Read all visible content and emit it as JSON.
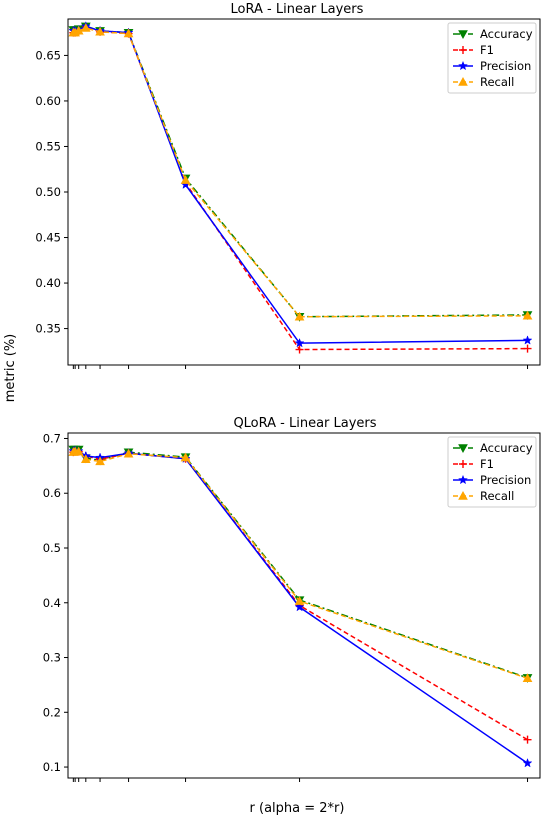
{
  "figure": {
    "ylabel": "metric (%)",
    "xlabel": "r (alpha = 2*r)"
  },
  "chart_data": [
    {
      "type": "line",
      "title": "LoRA - Linear Layers",
      "x_ticks": [
        1,
        2,
        4,
        8,
        16,
        32,
        64,
        128,
        256
      ],
      "xscale": "linear (r = 1…256, tick labels hidden)",
      "ylim": [
        0.31,
        0.69
      ],
      "yticks": [
        0.35,
        0.4,
        0.45,
        0.5,
        0.55,
        0.6,
        0.65
      ],
      "ytick_labels": [
        "0.35",
        "0.40",
        "0.45",
        "0.50",
        "0.55",
        "0.60",
        "0.65"
      ],
      "legend_position": "top-right",
      "grid": false,
      "x": [
        1,
        2,
        4,
        8,
        16,
        32,
        64,
        128,
        256
      ],
      "series": [
        {
          "name": "Accuracy",
          "color": "#008000",
          "linestyle": "dashdot",
          "marker": "triangle-down",
          "values": [
            0.678,
            0.678,
            0.679,
            0.682,
            0.677,
            0.675,
            0.515,
            0.363,
            0.365
          ]
        },
        {
          "name": "F1",
          "color": "#ff0000",
          "linestyle": "dashed",
          "marker": "plus",
          "values": [
            0.675,
            0.675,
            0.677,
            0.681,
            0.676,
            0.674,
            0.51,
            0.327,
            0.328
          ]
        },
        {
          "name": "Precision",
          "color": "#0000ff",
          "linestyle": "solid",
          "marker": "star",
          "values": [
            0.677,
            0.677,
            0.678,
            0.682,
            0.677,
            0.675,
            0.508,
            0.334,
            0.337
          ]
        },
        {
          "name": "Recall",
          "color": "#ffa500",
          "linestyle": "dashed",
          "marker": "triangle-up",
          "values": [
            0.675,
            0.675,
            0.677,
            0.68,
            0.676,
            0.674,
            0.513,
            0.363,
            0.364
          ]
        }
      ]
    },
    {
      "type": "line",
      "title": "QLoRA - Linear Layers",
      "x_ticks": [
        1,
        2,
        4,
        8,
        16,
        32,
        64,
        128,
        256
      ],
      "xscale": "linear (r = 1…256, tick labels hidden)",
      "ylim": [
        0.08,
        0.71
      ],
      "yticks": [
        0.1,
        0.2,
        0.3,
        0.4,
        0.5,
        0.6,
        0.7
      ],
      "ytick_labels": [
        "0.1",
        "0.2",
        "0.3",
        "0.4",
        "0.5",
        "0.6",
        "0.7"
      ],
      "legend_position": "top-right",
      "grid": false,
      "x": [
        1,
        2,
        4,
        8,
        16,
        32,
        64,
        128,
        256
      ],
      "series": [
        {
          "name": "Accuracy",
          "color": "#008000",
          "linestyle": "dashdot",
          "marker": "triangle-down",
          "values": [
            0.68,
            0.68,
            0.68,
            0.664,
            0.66,
            0.675,
            0.666,
            0.405,
            0.263
          ]
        },
        {
          "name": "F1",
          "color": "#ff0000",
          "linestyle": "dashed",
          "marker": "plus",
          "values": [
            0.675,
            0.676,
            0.676,
            0.668,
            0.662,
            0.673,
            0.663,
            0.395,
            0.15
          ]
        },
        {
          "name": "Precision",
          "color": "#0000ff",
          "linestyle": "solid",
          "marker": "star",
          "values": [
            0.677,
            0.678,
            0.677,
            0.668,
            0.665,
            0.673,
            0.663,
            0.392,
            0.107
          ]
        },
        {
          "name": "Recall",
          "color": "#ffa500",
          "linestyle": "dashed",
          "marker": "triangle-up",
          "values": [
            0.675,
            0.676,
            0.676,
            0.662,
            0.658,
            0.672,
            0.665,
            0.403,
            0.262
          ]
        }
      ]
    }
  ]
}
